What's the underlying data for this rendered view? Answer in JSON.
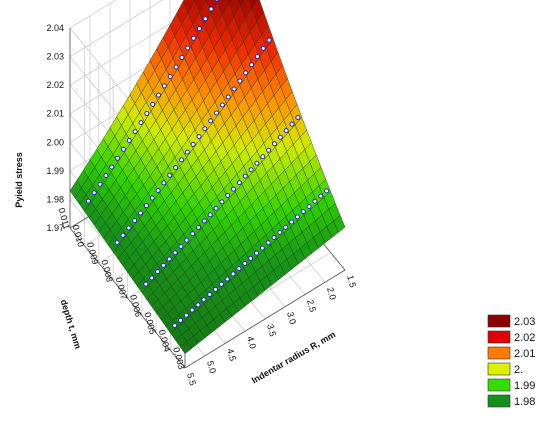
{
  "chart_data": {
    "type": "surface3d",
    "zlabel": "Pyield stress",
    "xlabel": "Indentar radius R, mm",
    "ylabel": "depth t, mm",
    "z_ticks": [
      "1.97",
      "1.98",
      "1.99",
      "2.00",
      "2.01",
      "2.02",
      "2.03",
      "2.04"
    ],
    "x_ticks": [
      "1.5",
      "2.0",
      "2.5",
      "3.0",
      "3.5",
      "4.0",
      "4.5",
      "5.0",
      "5.5"
    ],
    "y_ticks": [
      "0.003",
      "0.004",
      "0.005",
      "0.006",
      "0.007",
      "0.008",
      "0.009",
      "0.010",
      "0.011"
    ],
    "xlim": [
      1.5,
      5.5
    ],
    "ylim": [
      0.003,
      0.011
    ],
    "zlim": [
      1.97,
      2.04
    ],
    "surface_corners": {
      "R1.5_t0.003": 1.985,
      "R5.5_t0.003": 1.975,
      "R5.5_t0.011": 1.983,
      "R1.5_t0.011": 2.04
    },
    "legend": {
      "position": "bottom-right",
      "entries": [
        {
          "label": "2.03",
          "color": "#8b0000"
        },
        {
          "label": "2.02",
          "color": "#e00000"
        },
        {
          "label": "2.01",
          "color": "#ff7a00"
        },
        {
          "label": "2.",
          "color": "#dcf000"
        },
        {
          "label": "1.99",
          "color": "#33dd00"
        },
        {
          "label": "1.98",
          "color": "#14901a"
        }
      ]
    },
    "point_series_depths": [
      0.004,
      0.006,
      0.008,
      0.01
    ],
    "grid": true
  }
}
